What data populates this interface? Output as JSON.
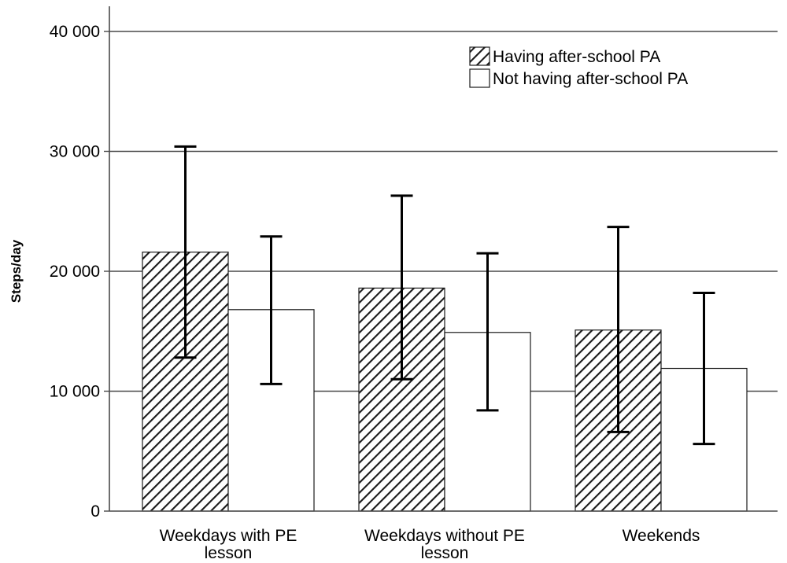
{
  "chart_data": {
    "type": "bar",
    "title": "",
    "xlabel": "",
    "ylabel": "Steps/day",
    "ylim": [
      0,
      40000
    ],
    "yticks": [
      0,
      10000,
      20000,
      30000,
      40000
    ],
    "ytick_labels": [
      "0",
      "10 000",
      "20 000",
      "30 000",
      "40 000"
    ],
    "grid": true,
    "legend_position": "top-right",
    "categories": [
      "Weekdays with PE lesson",
      "Weekdays without PE lesson",
      "Weekends"
    ],
    "category_lines": [
      [
        "Weekdays with PE",
        "lesson"
      ],
      [
        "Weekdays without PE",
        "lesson"
      ],
      [
        "Weekends"
      ]
    ],
    "series": [
      {
        "name": "Having after-school PA",
        "fill": "hatched",
        "values": [
          21600,
          18600,
          15100
        ],
        "error_low": [
          12800,
          11000,
          6600
        ],
        "error_high": [
          30400,
          26300,
          23700
        ]
      },
      {
        "name": "Not having after-school PA",
        "fill": "white",
        "values": [
          16800,
          14900,
          11900
        ],
        "error_low": [
          10600,
          8400,
          5600
        ],
        "error_high": [
          22900,
          21500,
          18200
        ]
      }
    ]
  }
}
